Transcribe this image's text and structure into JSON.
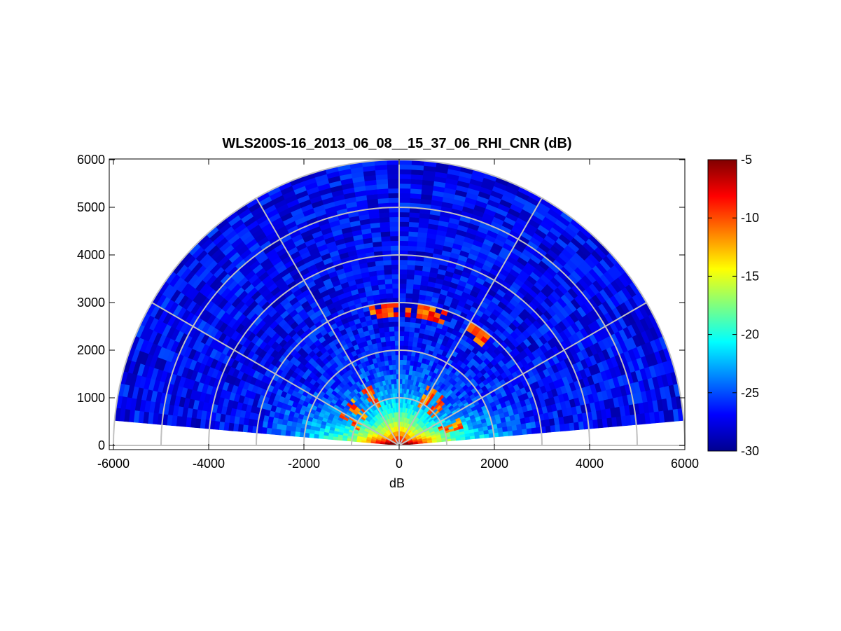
{
  "chart_data": {
    "type": "heatmap",
    "subtype": "polar-rhi-sector",
    "title": "WLS200S-16_2013_06_08__15_37_06_RHI_CNR (dB)",
    "xlabel": "dB",
    "ylabel": "",
    "xlim": [
      -6000,
      6000
    ],
    "ylim": [
      0,
      6000
    ],
    "x_ticks": [
      -6000,
      -4000,
      -2000,
      0,
      2000,
      4000,
      6000
    ],
    "y_ticks": [
      0,
      1000,
      2000,
      3000,
      4000,
      5000,
      6000
    ],
    "x_tick_labels": [
      "-6000",
      "-4000",
      "-2000",
      "0",
      "2000",
      "4000",
      "6000"
    ],
    "y_tick_labels": [
      "0",
      "1000",
      "2000",
      "3000",
      "4000",
      "5000",
      "6000"
    ],
    "max_range": 6000,
    "elevation_range_deg": [
      5,
      175
    ],
    "range_rings": [
      1000,
      2000,
      3000,
      4000,
      5000,
      6000
    ],
    "spokes_deg": [
      0,
      30,
      60,
      90,
      120,
      150,
      180
    ],
    "grid": true,
    "colormap": "jet",
    "colorbar": {
      "clim": [
        -30,
        -5
      ],
      "ticks": [
        -5,
        -10,
        -15,
        -20,
        -25,
        -30
      ],
      "tick_labels": [
        "-5",
        "-10",
        "-15",
        "-20",
        "-25",
        "-30"
      ],
      "location": "right"
    },
    "field_description": {
      "near_range_peak_db": -5,
      "background_db": -27,
      "cloud_layer": {
        "range_m": [
          2700,
          3050
        ],
        "angles_deg": [
          55,
          75,
          82,
          90,
          98
        ]
      },
      "low_layer": {
        "range_m": [
          900,
          1400
        ],
        "angles_deg": [
          20,
          45,
          60,
          120,
          140,
          155
        ]
      }
    }
  },
  "colors": {
    "grid": "#c0c0c0",
    "axes": "#000000",
    "background": "#ffffff"
  }
}
